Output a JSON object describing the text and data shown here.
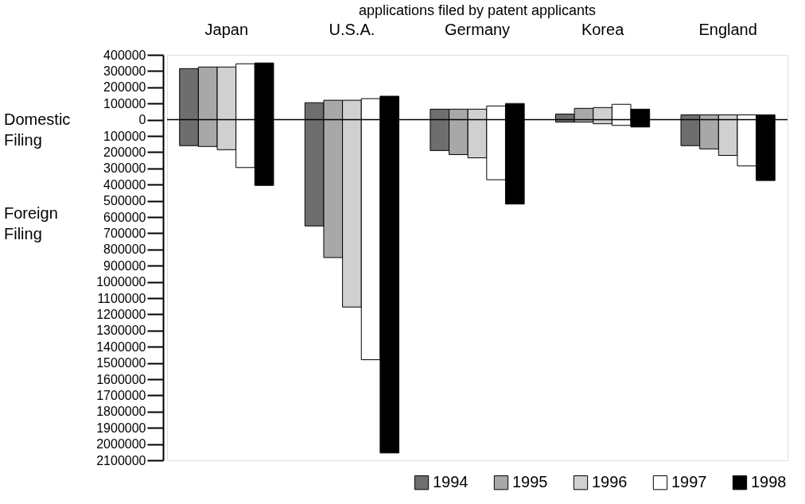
{
  "chart_data": {
    "type": "bar",
    "title": "applications filed by patent applicants",
    "categories": [
      "Japan",
      "U.S.A.",
      "Germany",
      "Korea",
      "England"
    ],
    "series": [
      {
        "name": "1994",
        "color": "#6e6e6e",
        "base": [
          -160000,
          -655000,
          -190000,
          -15000,
          -160000
        ],
        "values": [
          475000,
          760000,
          255000,
          50000,
          190000
        ]
      },
      {
        "name": "1995",
        "color": "#a8a8a8",
        "base": [
          -165000,
          -850000,
          -215000,
          -15000,
          -180000
        ],
        "values": [
          490000,
          970000,
          280000,
          85000,
          210000
        ]
      },
      {
        "name": "1996",
        "color": "#d0d0d0",
        "base": [
          -185000,
          -1155000,
          -235000,
          -25000,
          -220000
        ],
        "values": [
          510000,
          1275000,
          300000,
          100000,
          250000
        ]
      },
      {
        "name": "1997",
        "color": "#ffffff",
        "base": [
          -295000,
          -1480000,
          -370000,
          -35000,
          -285000
        ],
        "values": [
          640000,
          1610000,
          455000,
          130000,
          315000
        ]
      },
      {
        "name": "1998",
        "color": "#000000",
        "base": [
          -405000,
          -2055000,
          -520000,
          -45000,
          -375000
        ],
        "values": [
          755000,
          2200000,
          620000,
          110000,
          405000
        ]
      }
    ],
    "ylim": [
      -2100000,
      400000
    ],
    "yticks": [
      400000,
      300000,
      200000,
      100000,
      0,
      {
        "value": -100000,
        "label": "100000"
      },
      {
        "value": -200000,
        "label": "200000"
      },
      {
        "value": -300000,
        "label": "300000"
      },
      {
        "value": -400000,
        "label": "400000"
      },
      {
        "value": -500000,
        "label": "500000"
      },
      {
        "value": -600000,
        "label": "600000"
      },
      {
        "value": -700000,
        "label": "700000"
      },
      {
        "value": -800000,
        "label": "800000"
      },
      {
        "value": -900000,
        "label": "900000"
      },
      {
        "value": -1000000,
        "label": "1000000"
      },
      {
        "value": -1100000,
        "label": "1100000"
      },
      {
        "value": -1200000,
        "label": "1200000"
      },
      {
        "value": -1300000,
        "label": "1300000"
      },
      {
        "value": -1400000,
        "label": "1400000"
      },
      {
        "value": -1500000,
        "label": "1500000"
      },
      {
        "value": -1600000,
        "label": "1600000"
      },
      {
        "value": -1700000,
        "label": "1700000"
      },
      {
        "value": -1800000,
        "label": "1800000"
      },
      {
        "value": -1900000,
        "label": "1900000"
      },
      {
        "value": -2000000,
        "label": "2000000"
      },
      {
        "value": -2100000,
        "label": "2100000"
      }
    ],
    "ref_lines": [
      {
        "axis": "y",
        "value": 0
      }
    ],
    "annotations": [
      "Domestic Filing",
      "Foreign Filing"
    ],
    "legend": "bottom right",
    "grid": false
  }
}
